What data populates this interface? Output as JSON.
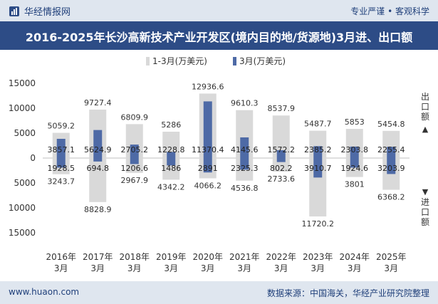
{
  "header": {
    "brand": "华经情报网",
    "tagline": "专业严谨 • 客观科学"
  },
  "footer": {
    "url": "www.huaon.com",
    "source": "数据来源：中国海关，华经产业研究院整理"
  },
  "colors": {
    "cumulative": "#d9d9d9",
    "march": "#4e6aa6",
    "title_bg": "#2d4c86",
    "bar_bg": "#dfe6ef"
  },
  "chart_data": {
    "type": "bar",
    "title": "2016-2025年长沙高新技术产业开发区(境内目的地/货源地)3月进、出口额",
    "categories": [
      "2016年\n3月",
      "2017年\n3月",
      "2018年\n3月",
      "2019年\n3月",
      "2020年\n3月",
      "2021年\n3月",
      "2022年\n3月",
      "2023年\n3月",
      "2024年\n3月",
      "2025年\n3月"
    ],
    "series": [
      {
        "name": "1-3月(万美元)",
        "export": [
          5059.2,
          9727.4,
          6809.9,
          5286,
          12936.6,
          9610.3,
          8537.9,
          5487.7,
          5853,
          5454.8
        ],
        "import": [
          3243.7,
          8828.9,
          2967.9,
          4342.2,
          4066.2,
          4536.8,
          2733.6,
          11720.2,
          3801,
          6368.2
        ]
      },
      {
        "name": "3月(万美元)",
        "export": [
          3857.1,
          5624.9,
          2705.2,
          1228.8,
          11370.4,
          4145.6,
          1572.2,
          2385.2,
          2303.8,
          2255.4
        ],
        "import": [
          1928.5,
          694.8,
          1206.6,
          1486,
          2891,
          2325.3,
          802.2,
          3910.7,
          1924.6,
          3203.9
        ]
      }
    ],
    "y_tick_labels": [
      "15000",
      "10000",
      "5000",
      "0",
      "5000",
      "10000",
      "15000"
    ],
    "ylim": [
      -15000,
      15000
    ],
    "ylabel_top": "出口额",
    "ylabel_bottom": "进口额",
    "legend_position": "top"
  }
}
